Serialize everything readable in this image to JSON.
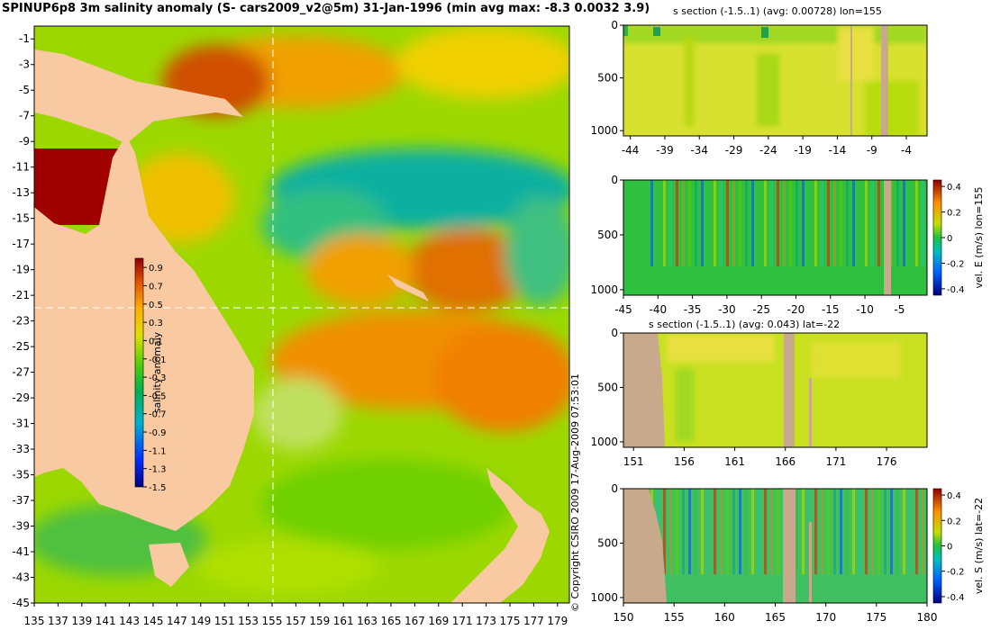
{
  "title": "SPINUP6p8 3m salinity anomaly (S- cars2009_v2@5m) 31-Jan-1996 (min avg max: -8.3 0.0032 3.9)",
  "copyright": "© Copyright CSIRO 2009  17-Aug-2009 07:53:01",
  "colors": {
    "land": "#f9c9a2",
    "section_land": "#c8a98c",
    "dashed": "#ffffff"
  },
  "chart_data": [
    {
      "type": "heatmap",
      "name": "salinity-map",
      "x_ticks": [
        "135",
        "137",
        "139",
        "141",
        "143",
        "145",
        "147",
        "149",
        "151",
        "153",
        "155",
        "157",
        "159",
        "161",
        "163",
        "165",
        "167",
        "169",
        "171",
        "173",
        "175",
        "177",
        "179"
      ],
      "y_ticks": [
        "-1",
        "-3",
        "-5",
        "-7",
        "-9",
        "-11",
        "-13",
        "-15",
        "-17",
        "-19",
        "-21",
        "-23",
        "-25",
        "-27",
        "-29",
        "-31",
        "-33",
        "-35",
        "-37",
        "-39",
        "-41",
        "-43",
        "-45"
      ],
      "xlim": [
        135,
        180
      ],
      "ylim": [
        -45,
        0
      ],
      "section_lon": 155,
      "section_lat": -22,
      "colorbar": {
        "label": "salinity anomaly",
        "ticks": [
          "0.9",
          "0.7",
          "0.5",
          "0.3",
          "0.1",
          "-0.1",
          "-0.3",
          "-0.5",
          "-0.7",
          "-0.9",
          "-1.1",
          "-1.3",
          "-1.5"
        ],
        "range": [
          -1.5,
          1.0
        ]
      }
    },
    {
      "type": "heatmap",
      "name": "s-section-lon",
      "title": "s section (-1.5..1) (avg: 0.00728) lon=155",
      "x_ticks": [
        "-44",
        "-39",
        "-34",
        "-29",
        "-24",
        "-19",
        "-14",
        "-9",
        "-4"
      ],
      "xlim": [
        -45,
        -1
      ],
      "y_ticks": [
        "0",
        "500",
        "1000"
      ],
      "ylim": [
        0,
        1050
      ]
    },
    {
      "type": "heatmap",
      "name": "vel-e-section",
      "x_ticks": [
        "-45",
        "-40",
        "-35",
        "-30",
        "-25",
        "-20",
        "-15",
        "-10",
        "-5"
      ],
      "xlim": [
        -45,
        -1
      ],
      "y_ticks": [
        "0",
        "500",
        "1000"
      ],
      "ylim": [
        0,
        1050
      ],
      "colorbar": {
        "label": "vel. E (m/s) lon=155",
        "ticks": [
          "0.4",
          "0.2",
          "0",
          "-0.2",
          "-0.4"
        ],
        "range": [
          -0.45,
          0.45
        ]
      }
    },
    {
      "type": "heatmap",
      "name": "s-section-lat",
      "title": "s section (-1.5..1) (avg: 0.043) lat=-22",
      "x_ticks": [
        "151",
        "156",
        "161",
        "166",
        "171",
        "176"
      ],
      "xlim": [
        150,
        180
      ],
      "y_ticks": [
        "0",
        "500",
        "1000"
      ],
      "ylim": [
        0,
        1050
      ]
    },
    {
      "type": "heatmap",
      "name": "vel-s-section",
      "x_ticks": [
        "150",
        "155",
        "160",
        "165",
        "170",
        "175",
        "180"
      ],
      "xlim": [
        150,
        180
      ],
      "y_ticks": [
        "0",
        "500",
        "1000"
      ],
      "ylim": [
        0,
        1050
      ],
      "colorbar": {
        "label": "vel. S (m/s) lat=-22",
        "ticks": [
          "0.4",
          "0.2",
          "0",
          "-0.2",
          "-0.4"
        ],
        "range": [
          -0.45,
          0.45
        ]
      }
    }
  ]
}
